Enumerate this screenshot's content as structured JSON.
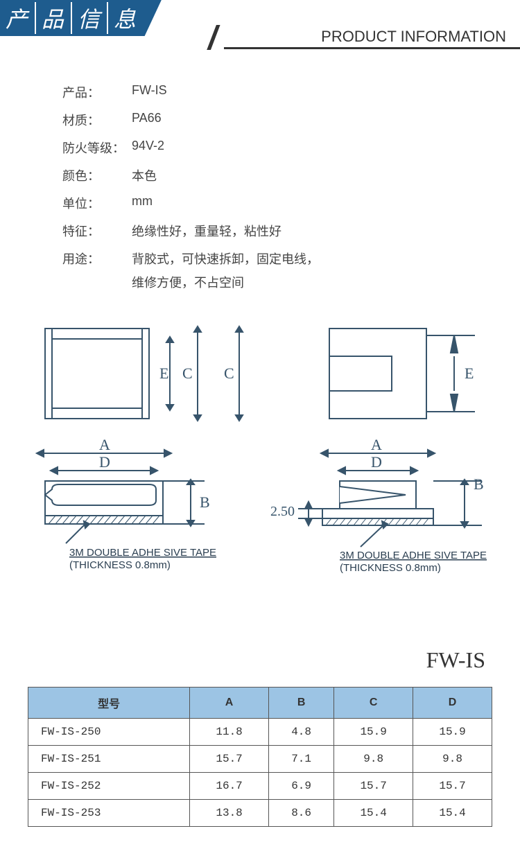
{
  "header": {
    "title_chars": [
      "产",
      "品",
      "信",
      "息"
    ],
    "subtitle": "PRODUCT INFORMATION",
    "banner_color": "#1e5c8e"
  },
  "specs": [
    {
      "label": "产品：",
      "value": "FW-IS"
    },
    {
      "label": "材质：",
      "value": "PA66"
    },
    {
      "label": "防火等级：",
      "value": "94V-2"
    },
    {
      "label": "颜色：",
      "value": "本色"
    },
    {
      "label": "单位：",
      "value": "mm"
    },
    {
      "label": "特征：",
      "value": "绝缘性好，重量轻，粘性好"
    },
    {
      "label": "用途：",
      "value": "背胶式，可快速拆卸，固定电线，"
    }
  ],
  "spec_sub": "维修方便，不占空间",
  "diagram": {
    "labels": {
      "A": "A",
      "B": "B",
      "C": "C",
      "D": "D",
      "E": "E",
      "dim": "2.50"
    },
    "tape_note": "3M DOUBLE ADHE SIVE TAPE",
    "tape_thick": "(THICKNESS 0.8mm)",
    "stroke": "#37546b",
    "fill": "#ffffff"
  },
  "product_code": "FW-IS",
  "table": {
    "header_bg": "#9cc4e4",
    "columns": [
      "型号",
      "A",
      "B",
      "C",
      "D"
    ],
    "rows": [
      [
        "FW-IS-250",
        "11.8",
        "4.8",
        "15.9",
        "15.9"
      ],
      [
        "FW-IS-251",
        "15.7",
        "7.1",
        "9.8",
        "9.8"
      ],
      [
        "FW-IS-252",
        "16.7",
        "6.9",
        "15.7",
        "15.7"
      ],
      [
        "FW-IS-253",
        "13.8",
        "8.6",
        "15.4",
        "15.4"
      ]
    ]
  }
}
